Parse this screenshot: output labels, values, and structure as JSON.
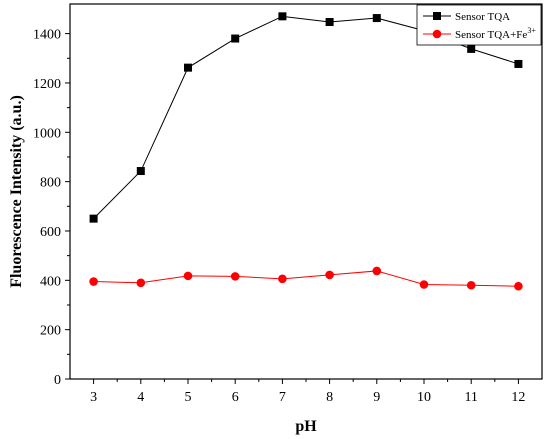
{
  "chart_data": {
    "type": "line",
    "title": "",
    "xlabel": "pH",
    "ylabel": "Fluorescence Intensity (a.u.)",
    "x": [
      3,
      4,
      5,
      6,
      7,
      8,
      9,
      10,
      11,
      12
    ],
    "xlim": [
      2.5,
      12.5
    ],
    "ylim": [
      0,
      1520
    ],
    "xticks": [
      3,
      4,
      5,
      6,
      7,
      8,
      9,
      10,
      11,
      12
    ],
    "yticks": [
      0,
      200,
      400,
      600,
      800,
      1000,
      1200,
      1400
    ],
    "grid": false,
    "legend_position": "top-right",
    "series": [
      {
        "name": "Sensor TQA",
        "marker": "square",
        "color": "#000000",
        "values": [
          650,
          843,
          1262,
          1380,
          1470,
          1447,
          1463,
          1412,
          1338,
          1277
        ]
      },
      {
        "name": "Sensor TQA+Fe",
        "name_superscript": "3+",
        "marker": "circle",
        "color": "#ff0000",
        "values": [
          395,
          390,
          418,
          416,
          406,
          422,
          438,
          383,
          380,
          376
        ]
      }
    ]
  }
}
